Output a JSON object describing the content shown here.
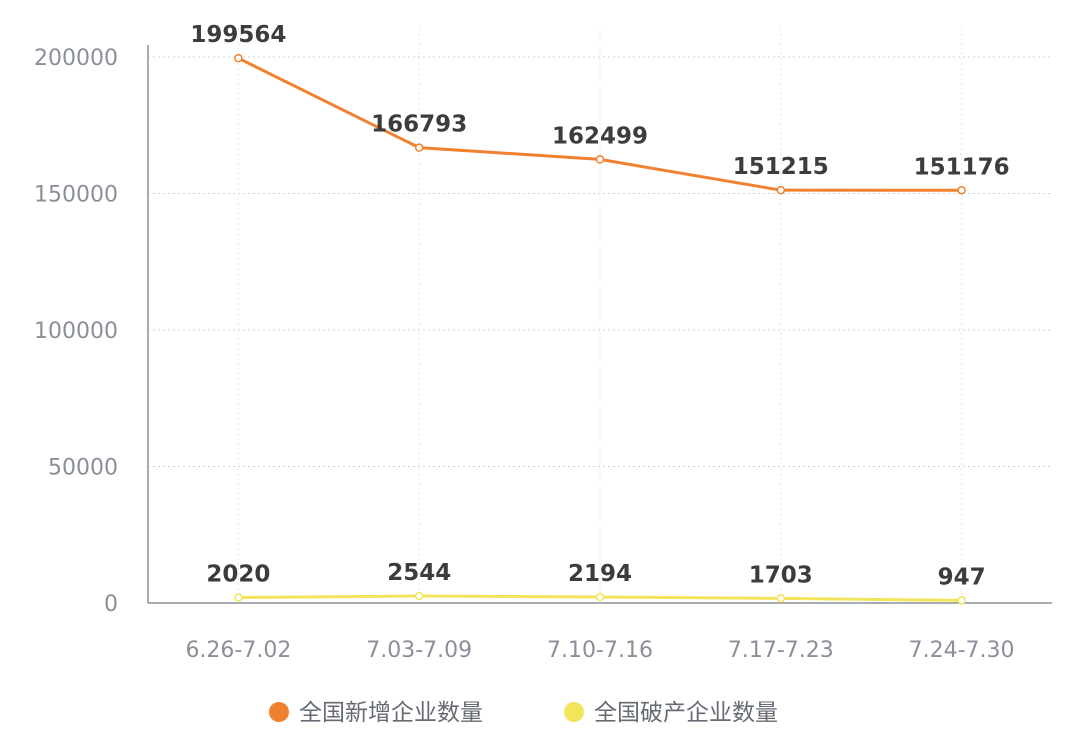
{
  "chart_data": {
    "type": "line",
    "categories": [
      "6.26-7.02",
      "7.03-7.09",
      "7.10-7.16",
      "7.17-7.23",
      "7.24-7.30"
    ],
    "series": [
      {
        "name": "全国新增企业数量",
        "color": "#f0812f",
        "values": [
          199564,
          166793,
          162499,
          151215,
          151176
        ]
      },
      {
        "name": "全国破产企业数量",
        "color": "#f2e55c",
        "values": [
          2020,
          2544,
          2194,
          1703,
          947
        ]
      }
    ],
    "yticks": [
      0,
      50000,
      100000,
      150000,
      200000
    ],
    "ylim": [
      0,
      200000
    ],
    "title": "",
    "xlabel": "",
    "ylabel": "",
    "grid": true,
    "legend": "bottom-center"
  }
}
